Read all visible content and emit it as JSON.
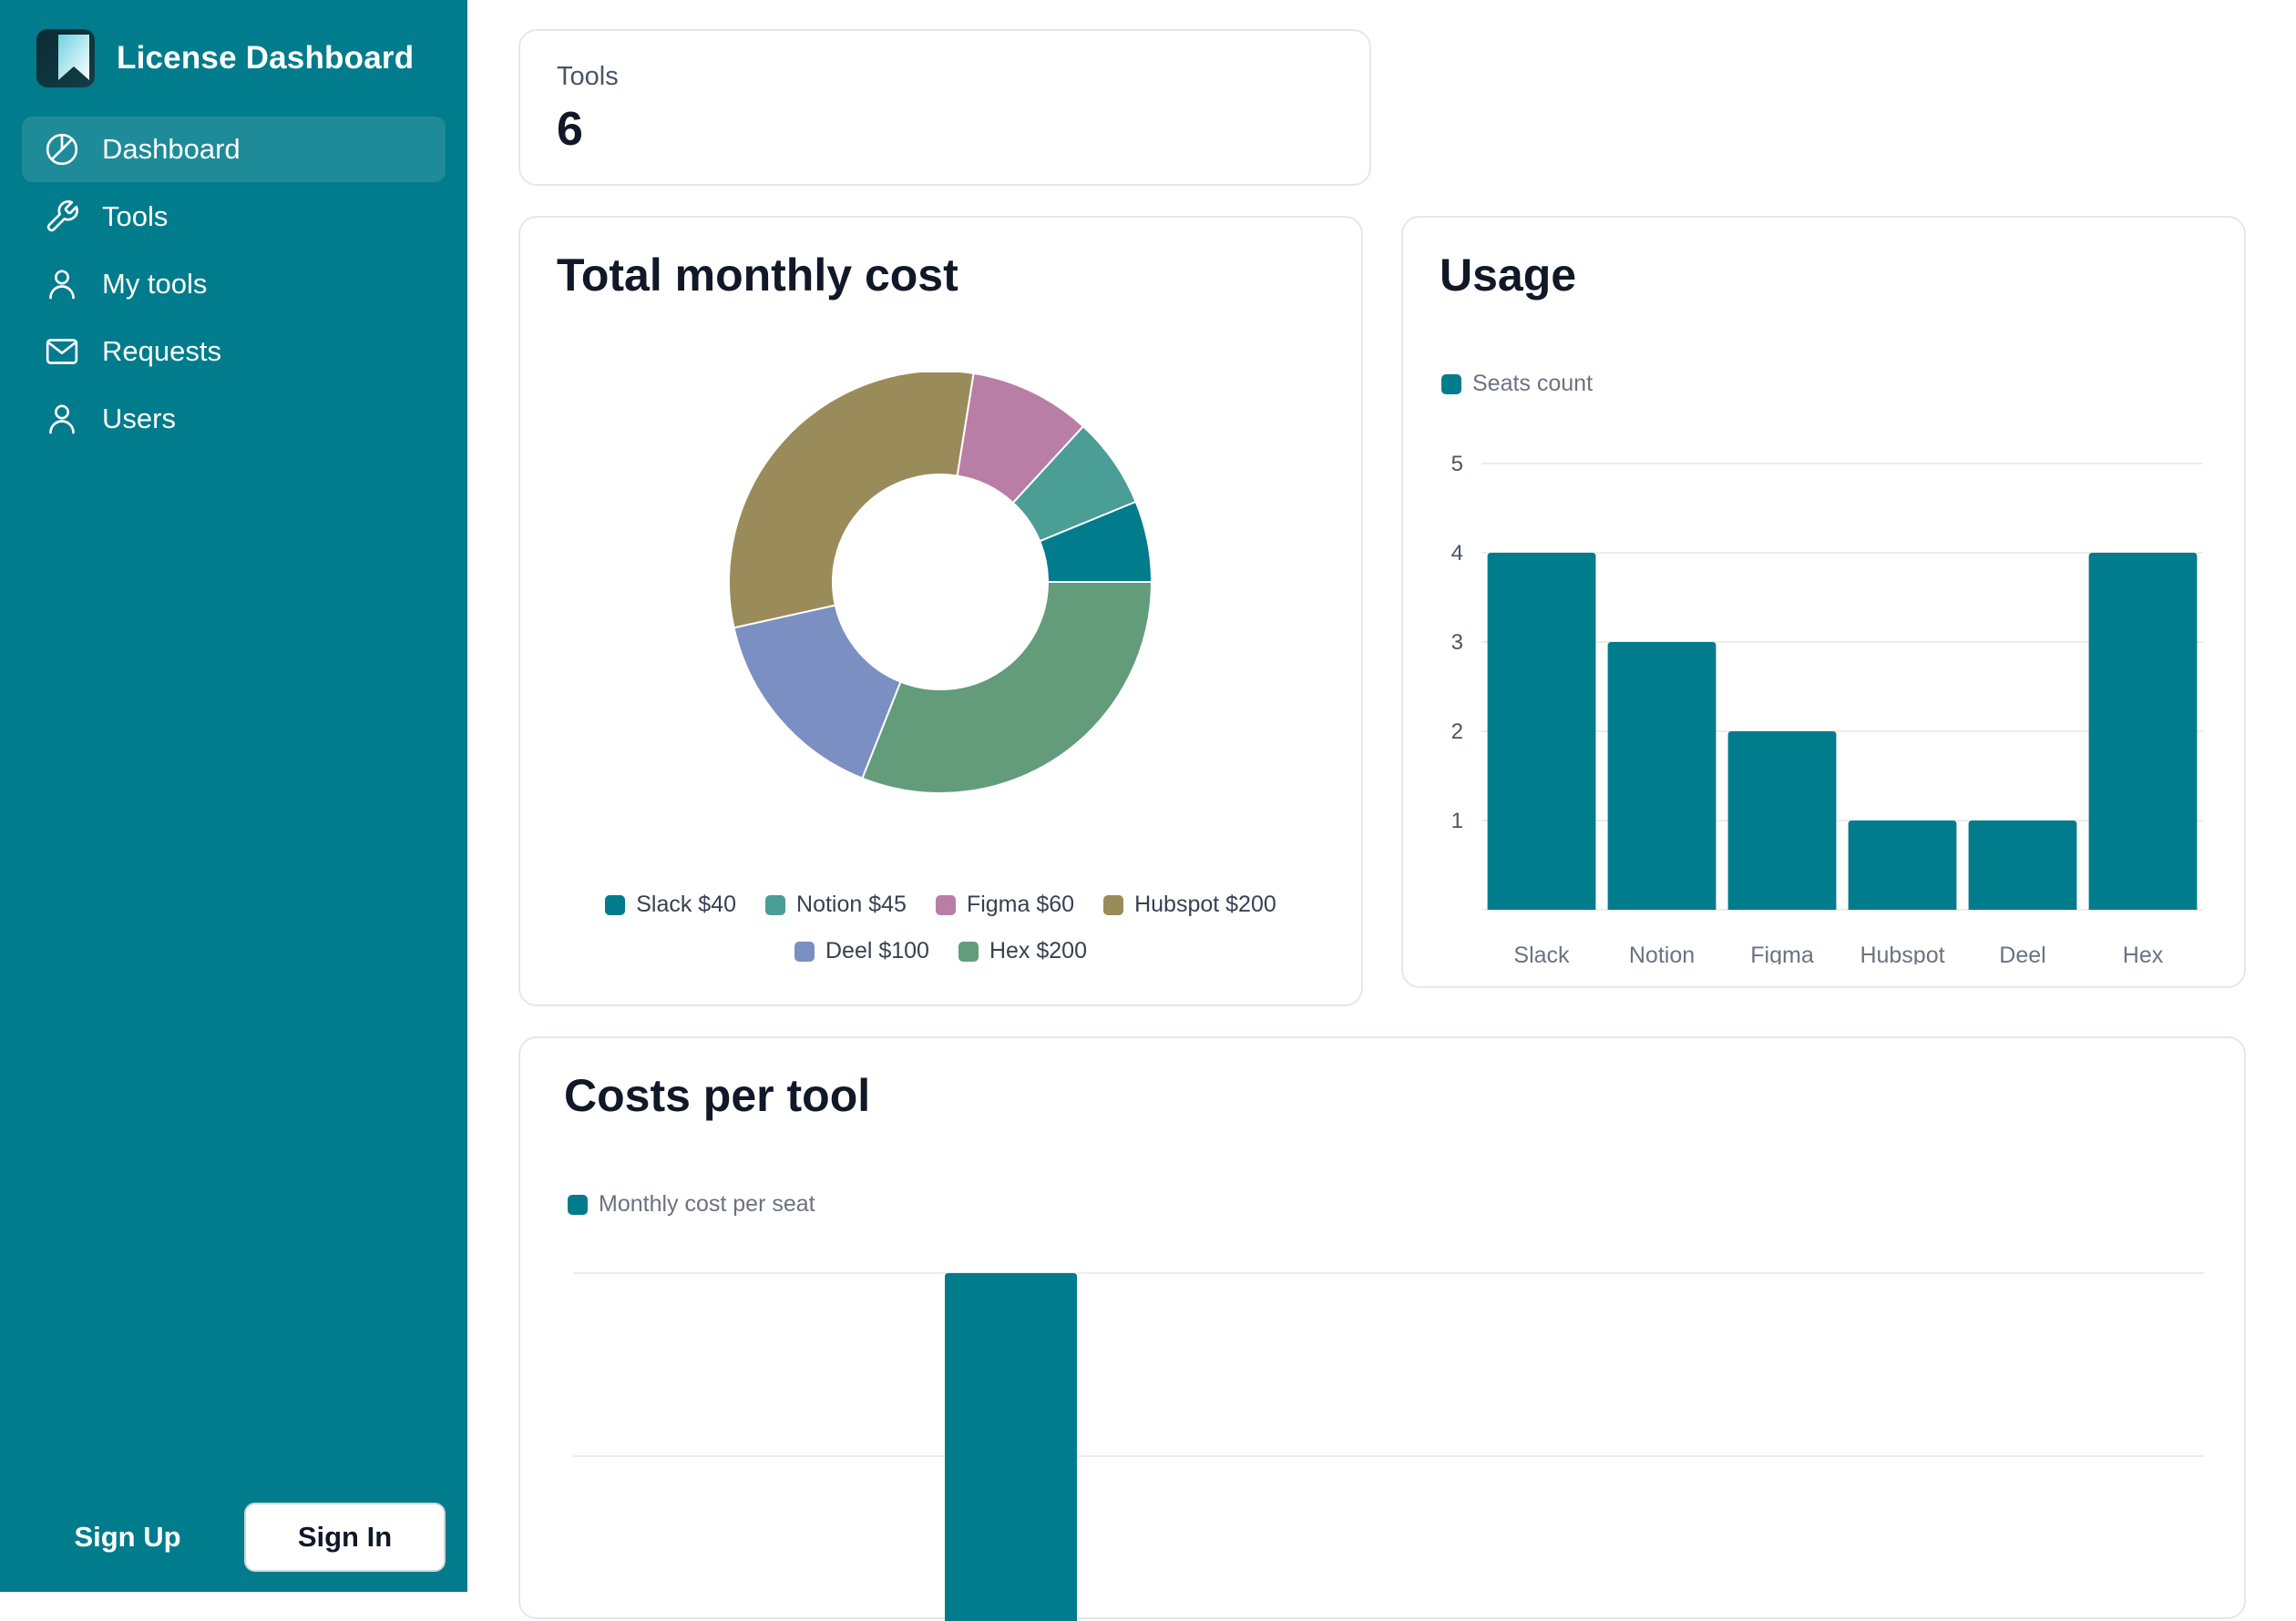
{
  "app": {
    "title": "License Dashboard"
  },
  "sidebar": {
    "items": [
      {
        "label": "Dashboard",
        "icon": "pie-chart-icon",
        "active": true
      },
      {
        "label": "Tools",
        "icon": "wrench-icon",
        "active": false
      },
      {
        "label": "My tools",
        "icon": "user-icon",
        "active": false
      },
      {
        "label": "Requests",
        "icon": "mail-icon",
        "active": false
      },
      {
        "label": "Users",
        "icon": "user-icon",
        "active": false
      }
    ],
    "signup_label": "Sign Up",
    "signin_label": "Sign In"
  },
  "stats": {
    "tools_label": "Tools",
    "tools_value": "6"
  },
  "cost_card": {
    "title": "Total monthly cost"
  },
  "usage_card": {
    "title": "Usage"
  },
  "per_tool_card": {
    "title": "Costs per tool"
  },
  "colors": {
    "primary": "#007c8c",
    "slack": "#007c8c",
    "notion": "#4a9e96",
    "figma": "#b87ea5",
    "hubspot": "#9a8c5a",
    "deel": "#7b8fc3",
    "hex": "#639c7b"
  },
  "chart_data": [
    {
      "type": "pie",
      "title": "Total monthly cost",
      "categories": [
        "Slack",
        "Notion",
        "Figma",
        "Hubspot",
        "Deel",
        "Hex"
      ],
      "values": [
        40,
        45,
        60,
        200,
        100,
        200
      ],
      "legend": [
        "Slack $40",
        "Notion $45",
        "Figma $60",
        "Hubspot $200",
        "Deel $100",
        "Hex $200"
      ],
      "legend_placement": "bottom"
    },
    {
      "type": "bar",
      "title": "Usage",
      "categories": [
        "Slack",
        "Notion",
        "Figma",
        "Hubspot",
        "Deel",
        "Hex"
      ],
      "series": [
        {
          "name": "Seats count",
          "values": [
            4,
            3,
            2,
            1,
            1,
            4
          ]
        }
      ],
      "ylim": [
        0,
        5
      ],
      "yticks": [
        1,
        2,
        3,
        4,
        5
      ],
      "grid": true,
      "legend_placement": "top-left"
    },
    {
      "type": "bar",
      "title": "Costs per tool",
      "series": [
        {
          "name": "Monthly cost per seat",
          "values": [
            null,
            null,
            null,
            null,
            1
          ]
        }
      ],
      "ylim": [
        0,
        1
      ],
      "grid": true,
      "legend_placement": "top-left"
    }
  ]
}
